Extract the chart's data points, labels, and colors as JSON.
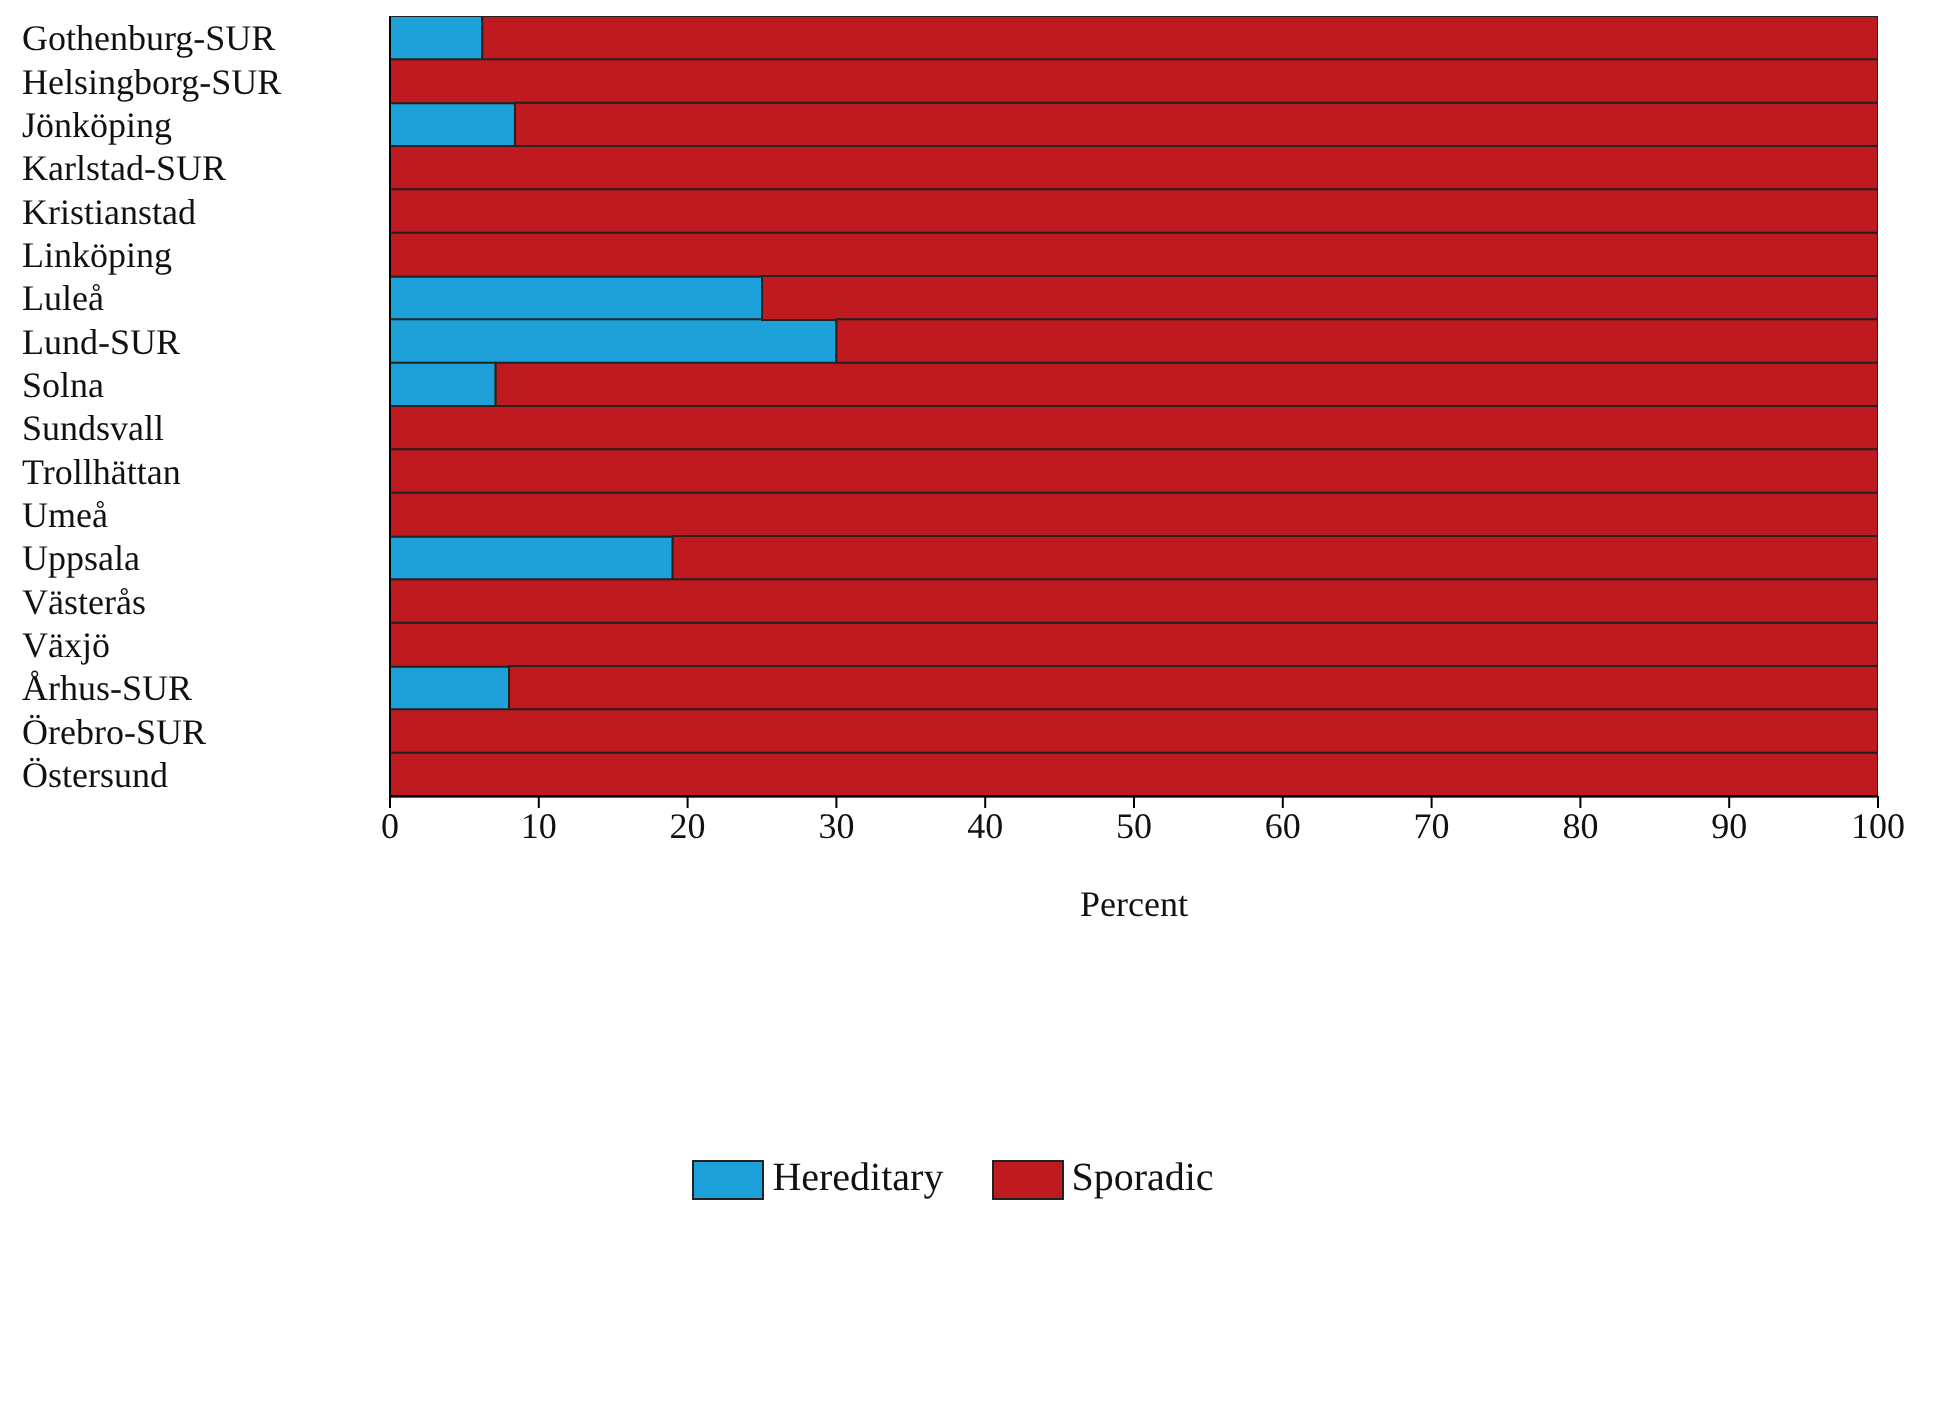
{
  "chart_data": {
    "type": "bar",
    "orientation": "horizontal",
    "stacked": true,
    "xlabel": "Percent",
    "categories": [
      "Gothenburg-SUR",
      "Helsingborg-SUR",
      "Jönköping",
      "Karlstad-SUR",
      "Kristianstad",
      "Linköping",
      "Luleå",
      "Lund-SUR",
      "Solna",
      "Sundsvall",
      "Trollhättan",
      "Umeå",
      "Uppsala",
      "Västerås",
      "Växjö",
      "Århus-SUR",
      "Örebro-SUR",
      "Östersund"
    ],
    "series": [
      {
        "name": "Hereditary",
        "color": "#1ea0d8",
        "values": [
          6.2,
          0,
          8.4,
          0,
          0,
          0,
          25,
          30,
          7.1,
          0,
          0,
          0,
          19,
          0,
          0,
          8,
          0,
          0
        ]
      },
      {
        "name": "Sporadic",
        "color": "#be1a1f",
        "values": [
          93.8,
          100,
          91.6,
          100,
          100,
          100,
          75,
          70,
          92.9,
          100,
          100,
          100,
          81,
          100,
          100,
          92,
          100,
          100
        ]
      }
    ],
    "xlim": [
      0,
      100
    ],
    "xticks": [
      0,
      10,
      20,
      30,
      40,
      50,
      60,
      70,
      80,
      90,
      100
    ],
    "grid": false,
    "legend": "bottom"
  }
}
